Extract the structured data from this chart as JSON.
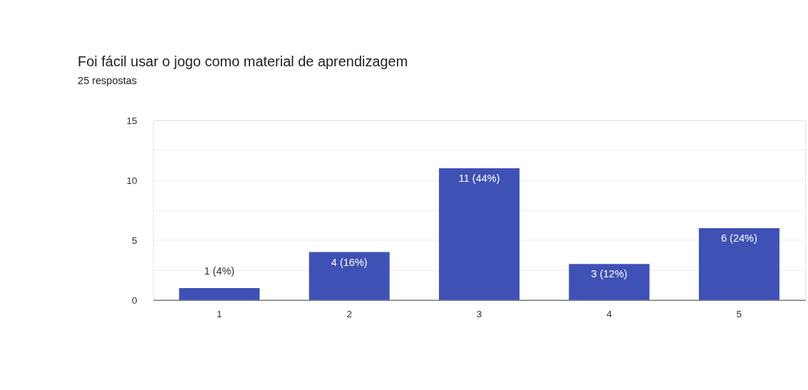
{
  "chart_data": {
    "type": "bar",
    "title": "Foi fácil usar o jogo como material de aprendizagem",
    "subtitle": "25 respostas",
    "categories": [
      "1",
      "2",
      "3",
      "4",
      "5"
    ],
    "values": [
      1,
      4,
      11,
      3,
      6
    ],
    "value_labels": [
      "1 (4%)",
      "4 (16%)",
      "11 (44%)",
      "3 (12%)",
      "6 (24%)"
    ],
    "color": "#3f51b5",
    "ylim": [
      0,
      15
    ],
    "yticks": [
      0,
      {
        "value": 2.5,
        "label": null
      },
      5,
      {
        "value": 7.5,
        "label": null
      },
      10,
      {
        "value": 12.5,
        "label": null
      },
      15
    ],
    "grid": "y"
  }
}
